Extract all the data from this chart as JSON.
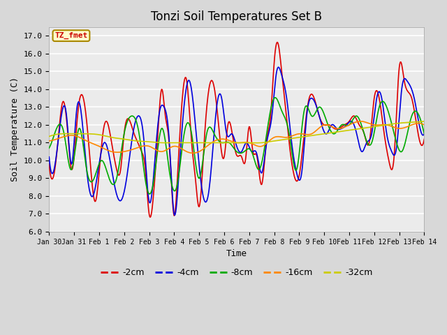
{
  "title": "Tonzi Soil Temperatures Set B",
  "xlabel": "Time",
  "ylabel": "Soil Temperature (C)",
  "legend_label": "TZ_fmet",
  "legend_entries": [
    "-2cm",
    "-4cm",
    "-8cm",
    "-16cm",
    "-32cm"
  ],
  "legend_colors": [
    "#dd0000",
    "#0000dd",
    "#00aa00",
    "#ff8800",
    "#cccc00"
  ],
  "ylim": [
    6.0,
    17.5
  ],
  "yticks": [
    6.0,
    7.0,
    8.0,
    9.0,
    10.0,
    11.0,
    12.0,
    13.0,
    14.0,
    15.0,
    16.0,
    17.0
  ],
  "title_fontsize": 12,
  "axis_label_fontsize": 9,
  "tick_fontsize": 8,
  "bg_outer": "#e0e0e0",
  "bg_plot": "#f0f0f0",
  "grid_color": "#ffffff",
  "r2_x": [
    0,
    0.15,
    0.35,
    0.55,
    0.75,
    0.9,
    1.0,
    1.15,
    1.35,
    1.55,
    1.7,
    1.85,
    2.0,
    2.15,
    2.3,
    2.5,
    2.7,
    2.85,
    3.0,
    3.2,
    3.4,
    3.55,
    3.7,
    3.85,
    4.0,
    4.2,
    4.35,
    4.5,
    4.65,
    4.8,
    5.0,
    5.15,
    5.3,
    5.5,
    5.7,
    5.85,
    6.0,
    6.2,
    6.5,
    6.7,
    6.85,
    7.0,
    7.15,
    7.3,
    7.5,
    7.7,
    7.85,
    8.0,
    8.15,
    8.3,
    8.5,
    8.7,
    8.85,
    9.0,
    9.15,
    9.3,
    9.45,
    9.6,
    9.8,
    10.0,
    10.2,
    10.4,
    10.6,
    10.8,
    11.0,
    11.2,
    11.4,
    11.6,
    11.8,
    12.0,
    12.2,
    12.4,
    12.6,
    12.8,
    13.0,
    13.2,
    13.4,
    13.6,
    13.8,
    14.0,
    14.2,
    14.5,
    14.8,
    15.0
  ],
  "r2_y": [
    9.8,
    9.0,
    11.0,
    13.3,
    11.5,
    9.5,
    10.2,
    12.7,
    13.6,
    11.5,
    9.0,
    7.7,
    9.3,
    11.5,
    12.2,
    11.0,
    9.5,
    9.4,
    11.5,
    12.3,
    11.5,
    11.0,
    10.5,
    9.5,
    7.0,
    8.5,
    11.5,
    14.0,
    12.5,
    11.0,
    6.9,
    9.5,
    13.0,
    14.5,
    11.0,
    9.0,
    7.4,
    11.0,
    14.5,
    13.1,
    11.0,
    10.2,
    12.0,
    11.7,
    10.3,
    10.2,
    10.0,
    11.9,
    10.5,
    10.3,
    8.65,
    11.2,
    12.4,
    15.5,
    16.6,
    15.0,
    13.0,
    11.0,
    9.15,
    9.15,
    11.5,
    13.5,
    13.5,
    12.5,
    12.0,
    12.0,
    11.8,
    11.8,
    12.0,
    12.2,
    12.5,
    12.0,
    11.5,
    11.0,
    13.5,
    13.5,
    11.5,
    9.9,
    10.3,
    15.2,
    14.5,
    13.5,
    11.2,
    11.2
  ],
  "r4_x": [
    0,
    0.2,
    0.5,
    0.7,
    0.9,
    1.1,
    1.3,
    1.5,
    1.75,
    2.0,
    2.2,
    2.5,
    2.7,
    2.9,
    3.1,
    3.35,
    3.6,
    3.8,
    4.0,
    4.2,
    4.4,
    4.6,
    4.8,
    5.0,
    5.2,
    5.4,
    5.6,
    5.85,
    6.1,
    6.4,
    6.7,
    6.9,
    7.1,
    7.3,
    7.5,
    7.7,
    7.9,
    8.1,
    8.3,
    8.5,
    8.7,
    8.9,
    9.1,
    9.3,
    9.5,
    9.7,
    9.9,
    10.1,
    10.3,
    10.5,
    10.7,
    10.9,
    11.1,
    11.3,
    11.5,
    11.7,
    11.9,
    12.1,
    12.3,
    12.5,
    12.7,
    12.9,
    13.1,
    13.3,
    13.5,
    13.7,
    13.9,
    14.1,
    14.3,
    14.6,
    14.9,
    15.0
  ],
  "r4_y": [
    10.2,
    9.5,
    12.6,
    12.5,
    9.8,
    12.8,
    12.5,
    9.5,
    8.0,
    9.8,
    11.0,
    9.5,
    8.1,
    7.8,
    9.0,
    11.5,
    12.5,
    11.0,
    7.7,
    9.5,
    12.6,
    13.0,
    11.2,
    7.0,
    9.5,
    13.1,
    14.5,
    12.0,
    8.5,
    8.4,
    13.0,
    13.5,
    11.5,
    11.5,
    10.8,
    10.5,
    11.0,
    10.5,
    10.4,
    9.3,
    11.0,
    12.4,
    15.0,
    14.8,
    13.5,
    11.0,
    9.3,
    9.3,
    12.5,
    13.5,
    13.0,
    12.0,
    11.5,
    12.0,
    11.8,
    11.8,
    12.0,
    12.2,
    11.5,
    10.5,
    11.0,
    11.5,
    13.5,
    13.5,
    11.5,
    10.5,
    10.8,
    14.0,
    14.5,
    13.5,
    11.5,
    11.5
  ],
  "r8_x": [
    0,
    0.3,
    0.6,
    0.9,
    1.2,
    1.5,
    1.8,
    2.1,
    2.4,
    2.7,
    3.0,
    3.3,
    3.6,
    3.9,
    4.2,
    4.5,
    4.8,
    5.1,
    5.4,
    5.7,
    6.0,
    6.3,
    6.6,
    6.9,
    7.2,
    7.5,
    7.8,
    8.1,
    8.4,
    8.7,
    9.0,
    9.3,
    9.6,
    9.9,
    10.2,
    10.5,
    10.8,
    11.1,
    11.4,
    11.7,
    12.0,
    12.3,
    12.6,
    12.9,
    13.2,
    13.5,
    13.8,
    14.1,
    14.5,
    14.8,
    15.0
  ],
  "r8_y": [
    10.7,
    11.8,
    11.5,
    9.5,
    11.8,
    9.5,
    9.0,
    10.0,
    9.0,
    9.0,
    11.5,
    12.5,
    11.5,
    8.5,
    9.0,
    11.8,
    9.5,
    8.5,
    11.5,
    11.5,
    9.0,
    11.5,
    11.5,
    11.0,
    11.0,
    10.5,
    10.5,
    10.5,
    9.5,
    11.5,
    13.5,
    12.8,
    11.5,
    9.5,
    12.8,
    12.5,
    13.0,
    12.2,
    11.5,
    12.0,
    12.0,
    12.5,
    11.5,
    11.0,
    13.0,
    13.0,
    11.5,
    10.5,
    12.5,
    12.5,
    11.5
  ],
  "r16_x": [
    0,
    0.5,
    1.0,
    1.5,
    2.0,
    2.5,
    3.0,
    3.5,
    4.0,
    4.5,
    5.0,
    5.5,
    6.0,
    6.5,
    7.0,
    7.5,
    8.0,
    8.5,
    9.0,
    9.5,
    10.0,
    10.5,
    11.0,
    11.5,
    12.0,
    12.5,
    13.0,
    13.5,
    14.0,
    14.5,
    15.0
  ],
  "r16_y": [
    11.1,
    11.3,
    11.4,
    11.1,
    10.8,
    10.5,
    10.5,
    10.7,
    10.8,
    10.5,
    10.8,
    10.5,
    10.5,
    11.0,
    11.2,
    11.0,
    11.0,
    10.8,
    11.3,
    11.3,
    11.5,
    11.5,
    12.0,
    11.8,
    12.0,
    12.2,
    12.0,
    12.0,
    11.8,
    12.0,
    12.0
  ],
  "r32_x": [
    0,
    0.5,
    1.0,
    1.5,
    2.0,
    2.5,
    3.0,
    3.5,
    4.0,
    4.5,
    5.0,
    5.5,
    6.0,
    6.5,
    7.0,
    7.5,
    8.0,
    8.5,
    9.0,
    9.5,
    10.0,
    10.5,
    11.0,
    11.5,
    12.0,
    12.5,
    13.0,
    13.5,
    14.0,
    14.5,
    15.0
  ],
  "r32_y": [
    11.35,
    11.5,
    11.5,
    11.5,
    11.45,
    11.3,
    11.2,
    11.1,
    11.05,
    11.0,
    11.0,
    11.0,
    11.0,
    11.0,
    11.0,
    11.0,
    11.0,
    11.0,
    11.1,
    11.2,
    11.3,
    11.4,
    11.5,
    11.6,
    11.7,
    11.8,
    11.9,
    12.0,
    12.1,
    12.15,
    12.2
  ]
}
